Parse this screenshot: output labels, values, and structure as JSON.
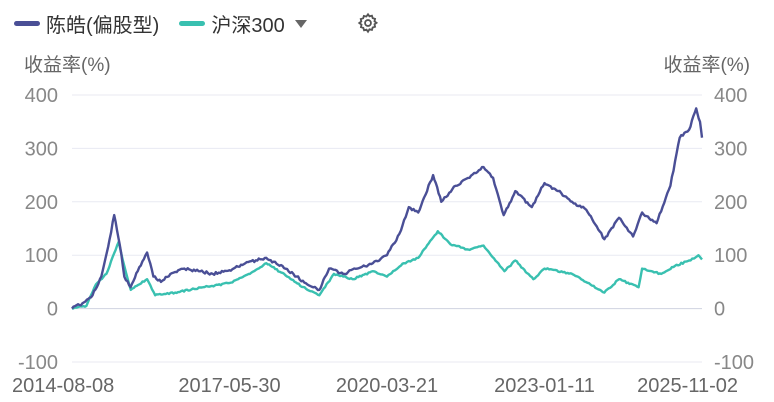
{
  "legend": {
    "series1_label": "陈皓(偏股型)",
    "series2_label": "沪深300",
    "series1_color": "#4a4f96",
    "series2_color": "#39c0b0"
  },
  "icons": {
    "dropdown": "chevron-down-icon",
    "settings": "gear-icon"
  },
  "chart_data": {
    "type": "line",
    "ylabel_left": "收益率(%)",
    "ylabel_right": "收益率(%)",
    "ylim": [
      -100,
      400
    ],
    "yticks": [
      -100,
      0,
      100,
      200,
      300,
      400
    ],
    "grid": true,
    "xlim": [
      "2014-08-08",
      "2025-11-02"
    ],
    "xticks": [
      "2014-08-08",
      "2017-05-30",
      "2020-03-21",
      "2023-01-11",
      "2025-11-02"
    ],
    "series": [
      {
        "name": "陈皓(偏股型)",
        "color": "#4a4f96",
        "points": [
          [
            "2014-08-08",
            0
          ],
          [
            "2014-10-15",
            10
          ],
          [
            "2014-12-20",
            25
          ],
          [
            "2015-02-15",
            60
          ],
          [
            "2015-04-10",
            130
          ],
          [
            "2015-05-10",
            175
          ],
          [
            "2015-06-15",
            120
          ],
          [
            "2015-07-15",
            60
          ],
          [
            "2015-08-25",
            40
          ],
          [
            "2015-10-10",
            70
          ],
          [
            "2015-12-10",
            105
          ],
          [
            "2016-01-20",
            60
          ],
          [
            "2016-03-10",
            50
          ],
          [
            "2016-05-10",
            65
          ],
          [
            "2016-08-10",
            75
          ],
          [
            "2016-11-10",
            70
          ],
          [
            "2017-02-10",
            65
          ],
          [
            "2017-05-30",
            72
          ],
          [
            "2017-09-10",
            85
          ],
          [
            "2018-01-15",
            95
          ],
          [
            "2018-05-10",
            80
          ],
          [
            "2018-08-10",
            60
          ],
          [
            "2018-10-20",
            45
          ],
          [
            "2019-01-05",
            35
          ],
          [
            "2019-03-10",
            75
          ],
          [
            "2019-06-10",
            65
          ],
          [
            "2019-09-10",
            75
          ],
          [
            "2019-12-20",
            85
          ],
          [
            "2020-03-21",
            100
          ],
          [
            "2020-06-10",
            140
          ],
          [
            "2020-08-10",
            190
          ],
          [
            "2020-10-10",
            180
          ],
          [
            "2021-01-15",
            250
          ],
          [
            "2021-03-10",
            200
          ],
          [
            "2021-06-10",
            230
          ],
          [
            "2021-09-10",
            245
          ],
          [
            "2021-12-10",
            265
          ],
          [
            "2022-02-10",
            245
          ],
          [
            "2022-04-20",
            175
          ],
          [
            "2022-07-05",
            220
          ],
          [
            "2022-10-20",
            190
          ],
          [
            "2023-01-11",
            235
          ],
          [
            "2023-04-10",
            220
          ],
          [
            "2023-07-10",
            200
          ],
          [
            "2023-10-10",
            185
          ],
          [
            "2024-02-05",
            130
          ],
          [
            "2024-05-10",
            170
          ],
          [
            "2024-08-10",
            135
          ],
          [
            "2024-10-08",
            180
          ],
          [
            "2025-01-10",
            160
          ],
          [
            "2025-04-10",
            230
          ],
          [
            "2025-06-10",
            320
          ],
          [
            "2025-08-10",
            335
          ],
          [
            "2025-09-25",
            375
          ],
          [
            "2025-10-20",
            350
          ],
          [
            "2025-11-02",
            320
          ]
        ]
      },
      {
        "name": "沪深300",
        "color": "#39c0b0",
        "points": [
          [
            "2014-08-08",
            0
          ],
          [
            "2014-11-10",
            5
          ],
          [
            "2015-01-10",
            45
          ],
          [
            "2015-03-20",
            65
          ],
          [
            "2015-06-08",
            125
          ],
          [
            "2015-07-15",
            80
          ],
          [
            "2015-08-26",
            35
          ],
          [
            "2015-12-10",
            55
          ],
          [
            "2016-02-01",
            25
          ],
          [
            "2016-06-10",
            30
          ],
          [
            "2016-12-10",
            40
          ],
          [
            "2017-05-30",
            48
          ],
          [
            "2017-10-10",
            65
          ],
          [
            "2018-01-25",
            85
          ],
          [
            "2018-06-10",
            60
          ],
          [
            "2018-10-20",
            35
          ],
          [
            "2019-01-05",
            25
          ],
          [
            "2019-04-10",
            65
          ],
          [
            "2019-08-10",
            55
          ],
          [
            "2019-12-20",
            70
          ],
          [
            "2020-03-21",
            60
          ],
          [
            "2020-07-10",
            85
          ],
          [
            "2020-10-10",
            95
          ],
          [
            "2021-02-15",
            145
          ],
          [
            "2021-05-10",
            120
          ],
          [
            "2021-09-10",
            110
          ],
          [
            "2021-12-10",
            118
          ],
          [
            "2022-04-25",
            70
          ],
          [
            "2022-07-05",
            90
          ],
          [
            "2022-10-30",
            55
          ],
          [
            "2023-01-11",
            75
          ],
          [
            "2023-07-10",
            65
          ],
          [
            "2024-02-05",
            30
          ],
          [
            "2024-05-10",
            55
          ],
          [
            "2024-09-15",
            40
          ],
          [
            "2024-10-08",
            75
          ],
          [
            "2025-02-10",
            65
          ],
          [
            "2025-05-10",
            80
          ],
          [
            "2025-08-10",
            90
          ],
          [
            "2025-10-10",
            100
          ],
          [
            "2025-11-02",
            92
          ]
        ]
      }
    ]
  }
}
